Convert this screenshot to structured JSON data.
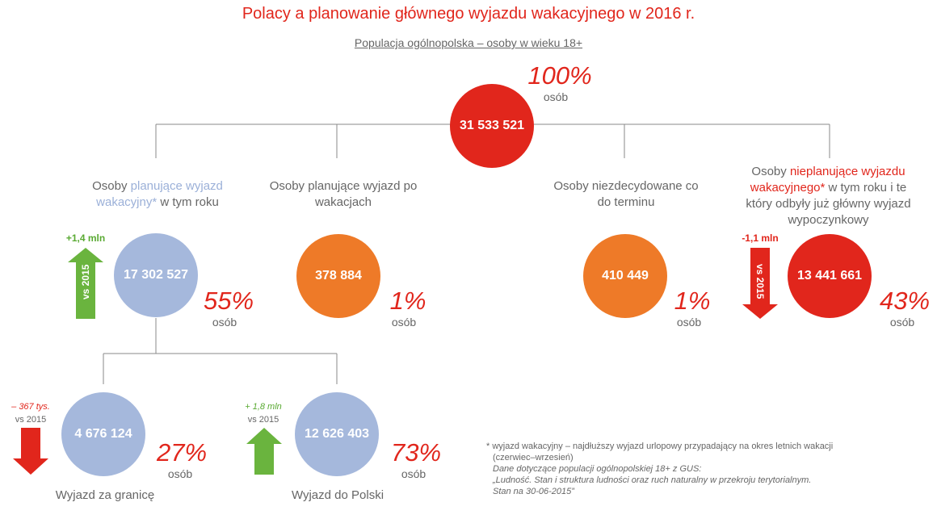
{
  "title": "Polacy a planowanie głównego wyjazdu wakacyjnego w 2016 r.",
  "subtitle": "Populacja ogólnopolska – osoby w wieku 18+",
  "root": {
    "value": "31 533 521",
    "pct": "100%",
    "unit": "osób"
  },
  "groups": {
    "planning": {
      "label_pre": "Osoby ",
      "label_hl": "planujące wyjazd wakacyjny*",
      "label_post": " w tym roku",
      "value": "17 302 527",
      "pct": "55%",
      "unit": "osób",
      "delta": "+1,4 mln",
      "arrow_text": "vs 2015"
    },
    "after": {
      "label": "Osoby planujące wyjazd po wakacjach",
      "value": "378 884",
      "pct": "1%",
      "unit": "osób"
    },
    "undecided": {
      "label": "Osoby niezdecydowane co do terminu",
      "value": "410 449",
      "pct": "1%",
      "unit": "osób"
    },
    "not_planning": {
      "label_pre": "Osoby ",
      "label_hl": "nieplanujące wyjazdu wakacyjnego*",
      "label_post": " w tym roku i te który odbyły już główny wyjazd wypoczynkowy",
      "value": "13 441 661",
      "pct": "43%",
      "unit": "osób",
      "delta": "-1,1 mln",
      "arrow_text": "vs 2015"
    }
  },
  "sub": {
    "abroad": {
      "label": "Wyjazd za granicę",
      "value": "4 676 124",
      "pct": "27%",
      "unit": "osób",
      "delta": "– 367 tys.",
      "delta_sub": "vs 2015"
    },
    "domestic": {
      "label": "Wyjazd do Polski",
      "value": "12 626 403",
      "pct": "73%",
      "unit": "osób",
      "delta": "+ 1,8 mln",
      "delta_sub": "vs 2015"
    }
  },
  "footnote": {
    "line1": "* wyjazd wakacyjny – najdłuższy wyjazd urlopowy przypadający na okres letnich wakacji",
    "line2": "(czerwiec–wrzesień)",
    "line3": "Dane dotyczące populacji ogólnopolskiej 18+ z GUS:",
    "line4": "„Ludność. Stan i struktura ludności oraz ruch naturalny w przekroju terytorialnym.",
    "line5": "Stan na 30-06-2015”"
  },
  "colors": {
    "red": "#e1261c",
    "blue": "#a5b8dc",
    "orange": "#ee7a28",
    "green": "#6ab43e"
  }
}
